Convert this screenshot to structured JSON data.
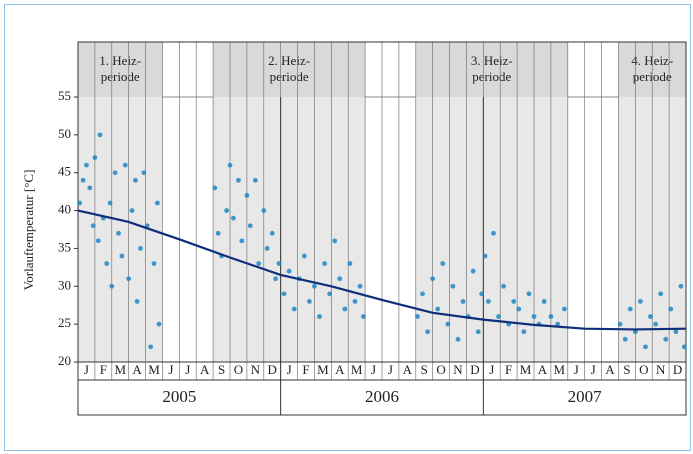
{
  "chart_data": {
    "type": "scatter",
    "y_label": "Vorlauftemperatur [°C]",
    "xlim": [
      0,
      36
    ],
    "xticks": [
      0,
      1,
      2,
      3,
      4,
      5,
      6,
      7,
      8,
      9,
      10,
      11,
      12,
      13,
      14,
      15,
      16,
      17,
      18,
      19,
      20,
      21,
      22,
      23,
      24,
      25,
      26,
      27,
      28,
      29,
      30,
      31,
      32,
      33,
      34,
      35,
      36
    ],
    "ylim": [
      20,
      55
    ],
    "yticks": [
      20,
      25,
      30,
      35,
      40,
      45,
      50,
      55
    ],
    "grid": true,
    "month_labels": [
      "J",
      "F",
      "M",
      "A",
      "M",
      "J",
      "J",
      "A",
      "S",
      "O",
      "N",
      "D",
      "J",
      "F",
      "M",
      "A",
      "M",
      "J",
      "J",
      "A",
      "S",
      "O",
      "N",
      "D",
      "J",
      "F",
      "M",
      "A",
      "M",
      "J",
      "J",
      "A",
      "S",
      "O",
      "N",
      "D"
    ],
    "years": [
      {
        "label": "2005",
        "start": 0,
        "end": 12
      },
      {
        "label": "2006",
        "start": 12,
        "end": 24
      },
      {
        "label": "2007",
        "start": 24,
        "end": 36
      }
    ],
    "heating_periods": [
      {
        "lines": [
          "1. Heiz-",
          "periode"
        ],
        "start": 0,
        "end": 5
      },
      {
        "lines": [
          "2. Heiz-",
          "periode"
        ],
        "start": 8,
        "end": 17
      },
      {
        "lines": [
          "3. Heiz-",
          "periode"
        ],
        "start": 20,
        "end": 29
      },
      {
        "lines": [
          "4. Heiz-",
          "periode"
        ],
        "start": 32,
        "end": 36
      }
    ],
    "points": {
      "color": "#1f86c6",
      "x": [
        0.1,
        0.3,
        0.5,
        0.7,
        0.9,
        1.0,
        1.2,
        1.3,
        1.5,
        1.7,
        1.9,
        2.0,
        2.2,
        2.4,
        2.6,
        2.8,
        3.0,
        3.2,
        3.4,
        3.5,
        3.7,
        3.9,
        4.1,
        4.3,
        4.5,
        4.7,
        4.8,
        8.1,
        8.3,
        8.5,
        8.8,
        9.0,
        9.2,
        9.5,
        9.7,
        10.0,
        10.2,
        10.5,
        10.7,
        11.0,
        11.2,
        11.5,
        11.7,
        11.9,
        12.2,
        12.5,
        12.8,
        13.1,
        13.4,
        13.7,
        14.0,
        14.3,
        14.6,
        14.9,
        15.2,
        15.5,
        15.8,
        16.1,
        16.4,
        16.7,
        16.9,
        20.1,
        20.4,
        20.7,
        21.0,
        21.3,
        21.6,
        21.9,
        22.2,
        22.5,
        22.8,
        23.1,
        23.4,
        23.7,
        23.9,
        24.1,
        24.3,
        24.6,
        24.9,
        25.2,
        25.5,
        25.8,
        26.1,
        26.4,
        26.7,
        27.0,
        27.3,
        27.6,
        28.0,
        28.4,
        28.8,
        32.1,
        32.4,
        32.7,
        33.0,
        33.3,
        33.6,
        33.9,
        34.2,
        34.5,
        34.8,
        35.1,
        35.4,
        35.7,
        35.9
      ],
      "values": [
        41,
        44,
        46,
        43,
        38,
        47,
        36,
        50,
        39,
        33,
        41,
        30,
        45,
        37,
        34,
        46,
        31,
        40,
        44,
        28,
        35,
        45,
        38,
        22,
        33,
        41,
        25,
        43,
        37,
        34,
        40,
        46,
        39,
        44,
        36,
        42,
        38,
        44,
        33,
        40,
        35,
        37,
        31,
        33,
        29,
        32,
        27,
        31,
        34,
        28,
        30,
        26,
        33,
        29,
        36,
        31,
        27,
        33,
        28,
        30,
        26,
        26,
        29,
        24,
        31,
        27,
        33,
        25,
        30,
        23,
        28,
        26,
        32,
        24,
        29,
        34,
        28,
        37,
        26,
        30,
        25,
        28,
        27,
        24,
        29,
        26,
        25,
        28,
        26,
        25,
        27,
        25,
        23,
        27,
        24,
        28,
        22,
        26,
        25,
        29,
        23,
        27,
        24,
        30,
        22
      ]
    },
    "trend": {
      "color": "#0d2e7a",
      "x": [
        0,
        3,
        6,
        9,
        12,
        15,
        18,
        21,
        24,
        27,
        30,
        33,
        36
      ],
      "values": [
        40,
        38.5,
        36.2,
        33.8,
        31.5,
        30,
        28.2,
        26.5,
        25.6,
        24.9,
        24.4,
        24.3,
        24.4
      ]
    }
  }
}
